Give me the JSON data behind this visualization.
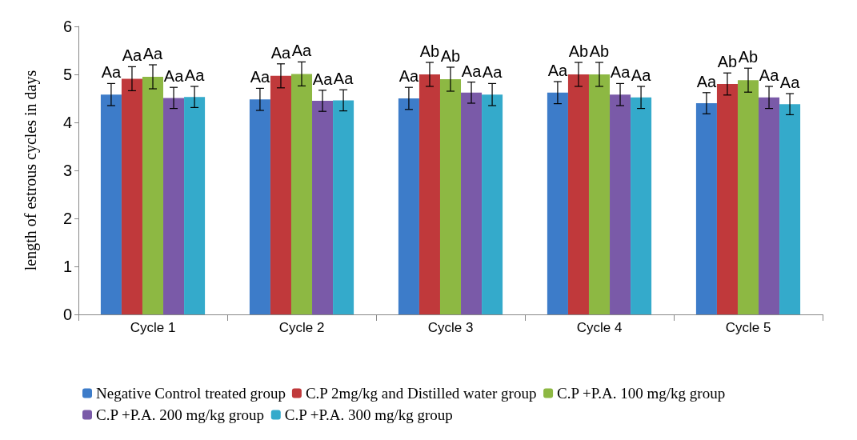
{
  "chart_data": {
    "type": "bar",
    "ylabel": "length of estrous cycles in days",
    "categories": [
      "Cycle 1",
      "Cycle 2",
      "Cycle 3",
      "Cycle 4",
      "Cycle 5"
    ],
    "series": [
      {
        "name": "Negative Control treated group",
        "color": "#3d7cc9",
        "values": [
          4.58,
          4.48,
          4.5,
          4.62,
          4.4
        ],
        "errors": [
          0.23,
          0.23,
          0.23,
          0.23,
          0.22
        ],
        "value_labels": [
          "Aa",
          "Aa",
          "Aa",
          "Aa",
          "Aa"
        ]
      },
      {
        "name": "C.P 2mg/kg and Distilled water group",
        "color": "#c0393b",
        "values": [
          4.91,
          4.97,
          5.0,
          5.0,
          4.8
        ],
        "errors": [
          0.25,
          0.25,
          0.25,
          0.25,
          0.23
        ],
        "value_labels": [
          "Aa",
          "Aa",
          "Ab",
          "Ab",
          "Ab"
        ]
      },
      {
        "name": "C.P +P.A. 100 mg/kg group",
        "color": "#8db843",
        "values": [
          4.95,
          5.01,
          4.9,
          5.0,
          4.88
        ],
        "errors": [
          0.25,
          0.25,
          0.25,
          0.25,
          0.25
        ],
        "value_labels": [
          "Aa",
          "Aa",
          "Ab",
          "Ab",
          "Ab"
        ]
      },
      {
        "name": "C.P +P.A. 200 mg/kg group",
        "color": "#7a5aa8",
        "values": [
          4.51,
          4.45,
          4.62,
          4.58,
          4.52
        ],
        "errors": [
          0.22,
          0.22,
          0.22,
          0.23,
          0.23
        ],
        "value_labels": [
          "Aa",
          "Aa",
          "Aa",
          "Aa",
          "Aa"
        ]
      },
      {
        "name": "C.P +P.A. 300 mg/kg group",
        "color": "#34aacb",
        "values": [
          4.53,
          4.46,
          4.58,
          4.52,
          4.38
        ],
        "errors": [
          0.22,
          0.22,
          0.23,
          0.23,
          0.22
        ],
        "value_labels": [
          "Aa",
          "Aa",
          "Aa",
          "Aa",
          "Aa"
        ]
      }
    ],
    "ylim": [
      0,
      6
    ],
    "yticks": [
      0,
      1,
      2,
      3,
      4,
      5,
      6
    ],
    "grid": false,
    "legend": "bottom"
  }
}
